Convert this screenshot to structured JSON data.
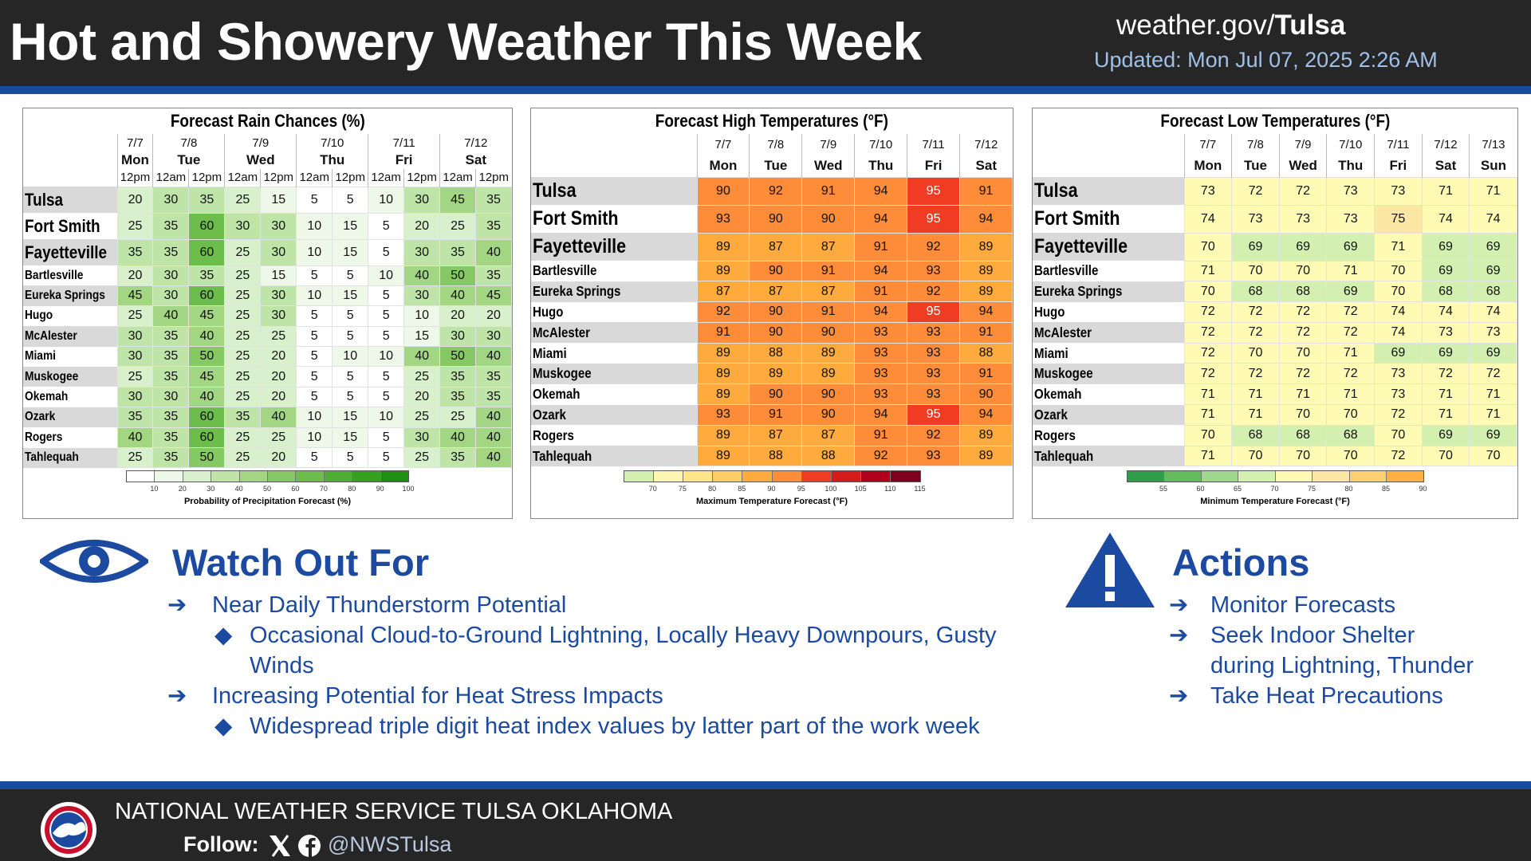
{
  "header": {
    "title": "Hot and Showery Weather This Week",
    "site": "weather.gov/",
    "site_bold": "Tulsa",
    "updated": "Updated: Mon Jul 07, 2025 2:26 AM"
  },
  "tables": [
    {
      "title": "Forecast Rain Chances (%)",
      "columns": [
        {
          "date": "7/7",
          "day": "Mon",
          "times": [
            "12pm"
          ]
        },
        {
          "date": "7/8",
          "day": "Tue",
          "times": [
            "12am",
            "12pm"
          ]
        },
        {
          "date": "7/9",
          "day": "Wed",
          "times": [
            "12am",
            "12pm"
          ]
        },
        {
          "date": "7/10",
          "day": "Thu",
          "times": [
            "12am",
            "12pm"
          ]
        },
        {
          "date": "7/11",
          "day": "Fri",
          "times": [
            "12am",
            "12pm"
          ]
        },
        {
          "date": "7/12",
          "day": "Sat",
          "times": [
            "12am",
            "12pm"
          ]
        }
      ],
      "rows": [
        {
          "city": "Tulsa",
          "values": [
            20,
            30,
            35,
            25,
            15,
            5,
            5,
            10,
            30,
            45,
            35
          ]
        },
        {
          "city": "Fort Smith",
          "values": [
            25,
            35,
            60,
            30,
            30,
            10,
            15,
            5,
            20,
            25,
            35
          ]
        },
        {
          "city": "Fayetteville",
          "values": [
            35,
            35,
            60,
            25,
            30,
            10,
            15,
            5,
            30,
            35,
            40
          ]
        },
        {
          "city": "Bartlesville",
          "values": [
            20,
            30,
            35,
            25,
            15,
            5,
            5,
            10,
            40,
            50,
            35
          ]
        },
        {
          "city": "Eureka Springs",
          "values": [
            45,
            30,
            60,
            25,
            30,
            10,
            15,
            5,
            30,
            40,
            45
          ]
        },
        {
          "city": "Hugo",
          "values": [
            25,
            40,
            45,
            25,
            30,
            5,
            5,
            5,
            10,
            20,
            20
          ]
        },
        {
          "city": "McAlester",
          "values": [
            30,
            35,
            40,
            25,
            25,
            5,
            5,
            5,
            15,
            30,
            30
          ]
        },
        {
          "city": "Miami",
          "values": [
            30,
            35,
            50,
            25,
            20,
            5,
            10,
            10,
            40,
            50,
            40
          ]
        },
        {
          "city": "Muskogee",
          "values": [
            25,
            35,
            45,
            25,
            20,
            5,
            5,
            5,
            25,
            35,
            35
          ]
        },
        {
          "city": "Okemah",
          "values": [
            30,
            30,
            40,
            25,
            20,
            5,
            5,
            5,
            20,
            35,
            35
          ]
        },
        {
          "city": "Ozark",
          "values": [
            35,
            35,
            60,
            35,
            40,
            10,
            15,
            10,
            25,
            25,
            40
          ]
        },
        {
          "city": "Rogers",
          "values": [
            40,
            35,
            60,
            25,
            25,
            10,
            15,
            5,
            30,
            40,
            40
          ]
        },
        {
          "city": "Tahlequah",
          "values": [
            25,
            35,
            50,
            25,
            20,
            5,
            5,
            5,
            25,
            35,
            40
          ]
        }
      ],
      "legend": {
        "label": "Probability of Precipitation Forecast (%)",
        "ticks": [
          10,
          20,
          30,
          40,
          50,
          60,
          70,
          80,
          90,
          100
        ],
        "colors": [
          "#ffffff",
          "#eef8e8",
          "#d9f0cc",
          "#bfe4a8",
          "#a2d683",
          "#86c964",
          "#6cbd4c",
          "#4fae34",
          "#36a020",
          "#1e8f10"
        ]
      }
    },
    {
      "title": "Forecast High Temperatures (°F)",
      "columns": [
        {
          "date": "7/7",
          "day": "Mon"
        },
        {
          "date": "7/8",
          "day": "Tue"
        },
        {
          "date": "7/9",
          "day": "Wed"
        },
        {
          "date": "7/10",
          "day": "Thu"
        },
        {
          "date": "7/11",
          "day": "Fri"
        },
        {
          "date": "7/12",
          "day": "Sat"
        }
      ],
      "rows": [
        {
          "city": "Tulsa",
          "values": [
            90,
            92,
            91,
            94,
            95,
            91
          ]
        },
        {
          "city": "Fort Smith",
          "values": [
            93,
            90,
            90,
            94,
            95,
            94
          ]
        },
        {
          "city": "Fayetteville",
          "values": [
            89,
            87,
            87,
            91,
            92,
            89
          ]
        },
        {
          "city": "Bartlesville",
          "values": [
            89,
            90,
            91,
            94,
            93,
            89
          ]
        },
        {
          "city": "Eureka Springs",
          "values": [
            87,
            87,
            87,
            91,
            92,
            89
          ]
        },
        {
          "city": "Hugo",
          "values": [
            92,
            90,
            91,
            94,
            95,
            94
          ]
        },
        {
          "city": "McAlester",
          "values": [
            91,
            90,
            90,
            93,
            93,
            91
          ]
        },
        {
          "city": "Miami",
          "values": [
            89,
            88,
            89,
            93,
            93,
            88
          ]
        },
        {
          "city": "Muskogee",
          "values": [
            89,
            89,
            89,
            93,
            93,
            91
          ]
        },
        {
          "city": "Okemah",
          "values": [
            89,
            90,
            90,
            93,
            93,
            90
          ]
        },
        {
          "city": "Ozark",
          "values": [
            93,
            91,
            90,
            94,
            95,
            94
          ]
        },
        {
          "city": "Rogers",
          "values": [
            89,
            87,
            87,
            91,
            92,
            89
          ]
        },
        {
          "city": "Tahlequah",
          "values": [
            89,
            88,
            88,
            92,
            93,
            89
          ]
        }
      ],
      "legend": {
        "label": "Maximum Temperature Forecast (°F)",
        "ticks": [
          70,
          75,
          80,
          85,
          90,
          95,
          100,
          105,
          110,
          115
        ],
        "colors": [
          "#d4f0b0",
          "#fff6b4",
          "#ffe48a",
          "#ffcc66",
          "#ffaa3c",
          "#ff8c38",
          "#f03c22",
          "#d41a1a",
          "#b0001e",
          "#80001c"
        ]
      }
    },
    {
      "title": "Forecast Low Temperatures (°F)",
      "columns": [
        {
          "date": "7/7",
          "day": "Mon"
        },
        {
          "date": "7/8",
          "day": "Tue"
        },
        {
          "date": "7/9",
          "day": "Wed"
        },
        {
          "date": "7/10",
          "day": "Thu"
        },
        {
          "date": "7/11",
          "day": "Fri"
        },
        {
          "date": "7/12",
          "day": "Sat"
        },
        {
          "date": "7/13",
          "day": "Sun"
        }
      ],
      "rows": [
        {
          "city": "Tulsa",
          "values": [
            73,
            72,
            72,
            73,
            73,
            71,
            71
          ]
        },
        {
          "city": "Fort Smith",
          "values": [
            74,
            73,
            73,
            73,
            75,
            74,
            74
          ]
        },
        {
          "city": "Fayetteville",
          "values": [
            70,
            69,
            69,
            69,
            71,
            69,
            69
          ]
        },
        {
          "city": "Bartlesville",
          "values": [
            71,
            70,
            70,
            71,
            70,
            69,
            69
          ]
        },
        {
          "city": "Eureka Springs",
          "values": [
            70,
            68,
            68,
            69,
            70,
            68,
            68
          ]
        },
        {
          "city": "Hugo",
          "values": [
            72,
            72,
            72,
            72,
            74,
            74,
            74
          ]
        },
        {
          "city": "McAlester",
          "values": [
            72,
            72,
            72,
            72,
            74,
            73,
            73
          ]
        },
        {
          "city": "Miami",
          "values": [
            72,
            70,
            70,
            71,
            69,
            69,
            69
          ]
        },
        {
          "city": "Muskogee",
          "values": [
            72,
            72,
            72,
            72,
            73,
            72,
            72
          ]
        },
        {
          "city": "Okemah",
          "values": [
            71,
            71,
            71,
            71,
            73,
            71,
            71
          ]
        },
        {
          "city": "Ozark",
          "values": [
            71,
            71,
            70,
            70,
            72,
            71,
            71
          ]
        },
        {
          "city": "Rogers",
          "values": [
            70,
            68,
            68,
            68,
            70,
            69,
            69
          ]
        },
        {
          "city": "Tahlequah",
          "values": [
            71,
            70,
            70,
            70,
            72,
            70,
            70
          ]
        }
      ],
      "legend": {
        "label": "Minimum Temperature Forecast (°F)",
        "ticks": [
          55,
          60,
          65,
          70,
          75,
          80,
          85,
          90
        ],
        "colors": [
          "#2e9e4a",
          "#64bb5e",
          "#a0d68e",
          "#d4f0b0",
          "#fffab4",
          "#fbe6a4",
          "#ffd070",
          "#ffb040"
        ]
      }
    }
  ],
  "watch_out": {
    "title": "Watch Out For",
    "items": [
      {
        "text": "Near Daily Thunderstorm Potential",
        "details": [
          "Occasional Cloud-to-Ground Lightning, Locally Heavy Downpours, Gusty Winds"
        ]
      },
      {
        "text": "Increasing Potential for Heat Stress Impacts",
        "details": [
          "Widespread triple digit heat index values by latter part of the work week"
        ]
      }
    ]
  },
  "actions": {
    "title": "Actions",
    "items": [
      "Monitor Forecasts",
      "Seek Indoor Shelter during Lightning, Thunder",
      "Take Heat Precautions"
    ]
  },
  "footer": {
    "office": "NATIONAL WEATHER SERVICE TULSA OKLAHOMA",
    "follow": "Follow:",
    "handle": "@NWSTulsa"
  }
}
